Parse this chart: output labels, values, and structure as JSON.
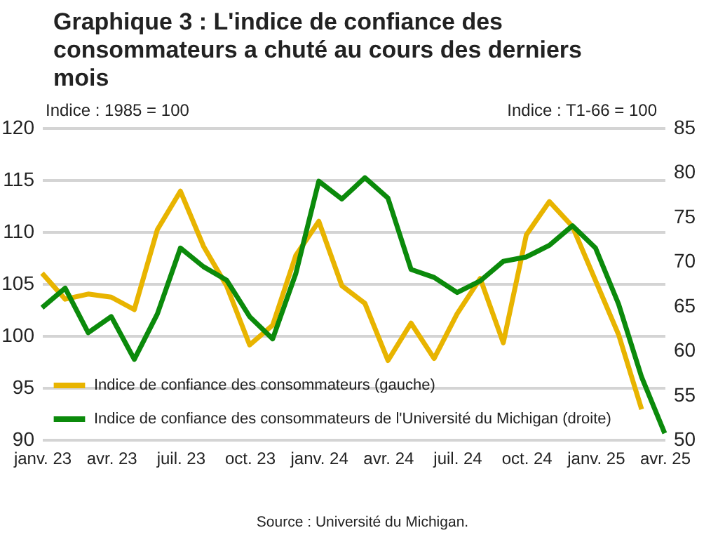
{
  "chart_data": {
    "type": "line",
    "title": "Graphique 3 : L'indice de confiance des consommateurs a chuté au cours des derniers mois",
    "ylabel": "Indice : 1985 = 100",
    "y2label": "Indice : T1-66 = 100",
    "categories": [
      "janv. 23",
      null,
      null,
      "avr. 23",
      null,
      null,
      "juil. 23",
      null,
      null,
      "oct. 23",
      null,
      null,
      "janv. 24",
      null,
      null,
      "avr. 24",
      null,
      null,
      "juil. 24",
      null,
      null,
      "oct. 24",
      null,
      null,
      "janv. 25",
      null,
      null,
      "avr. 25"
    ],
    "series": [
      {
        "name": "Indice de confiance des consommateurs (gauche)",
        "color": "#e8b400",
        "axis": "y",
        "values": [
          106.0,
          103.5,
          104.0,
          103.7,
          102.5,
          110.2,
          113.9,
          108.6,
          104.8,
          99.1,
          101.0,
          107.7,
          111.0,
          104.8,
          103.1,
          97.6,
          101.2,
          97.8,
          102.1,
          105.5,
          99.3,
          109.7,
          112.9,
          110.5,
          105.3,
          100.1,
          92.9,
          null
        ]
      },
      {
        "name": "Indice de confiance des consommateurs de l'Université du Michigan (droite)",
        "color": "#0b8a0b",
        "axis": "y2",
        "values": [
          64.8,
          67.0,
          62.0,
          63.8,
          59.0,
          64.1,
          71.5,
          69.4,
          67.9,
          63.8,
          61.3,
          68.6,
          79.0,
          77.0,
          79.4,
          77.1,
          69.1,
          68.2,
          66.5,
          67.8,
          70.0,
          70.5,
          71.8,
          74.0,
          71.5,
          65.2,
          57.0,
          50.7
        ]
      }
    ],
    "ylim": [
      90,
      120
    ],
    "yticks": [
      90,
      95,
      100,
      105,
      110,
      115,
      120
    ],
    "y2lim": [
      50,
      85
    ],
    "y2ticks": [
      50,
      55,
      60,
      65,
      70,
      75,
      80,
      85
    ],
    "grid": "y",
    "legend": "bottom left",
    "line_style": "solid",
    "marker": "none",
    "annotations": [
      "Source : Université du Michigan."
    ]
  }
}
